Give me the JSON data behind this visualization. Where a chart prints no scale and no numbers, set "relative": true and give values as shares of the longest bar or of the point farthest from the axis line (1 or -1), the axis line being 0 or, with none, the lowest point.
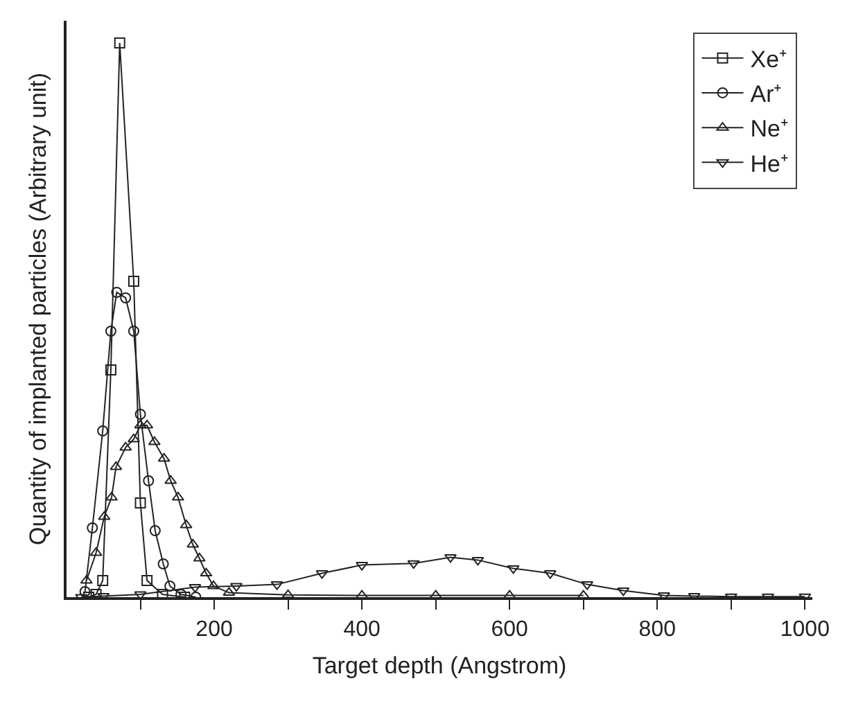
{
  "chart_data": {
    "type": "line",
    "relative": true,
    "xlabel": "Target depth (Angstrom)",
    "ylabel": "Quantity of implanted particles (Arbitrary unit)",
    "xlim": [
      0,
      1010
    ],
    "xticks": [
      {
        "value": 100,
        "label": null
      },
      200,
      {
        "value": 300,
        "label": null
      },
      400,
      {
        "value": 500,
        "label": null
      },
      600,
      {
        "value": 700,
        "label": null
      },
      800,
      {
        "value": 900,
        "label": null
      },
      1000
    ],
    "legend": "top right",
    "grid": false,
    "line_style": "solid",
    "series": [
      {
        "name": "Xe⁺",
        "color": "#222222",
        "marker": "square",
        "x": [
          30,
          40,
          49,
          60,
          72,
          91,
          100,
          109,
          130,
          160
        ],
        "values": [
          0,
          0.005,
          0.03,
          0.41,
          1.0,
          0.57,
          0.17,
          0.03,
          0.005,
          0
        ]
      },
      {
        "name": "Ar⁺",
        "color": "#222222",
        "marker": "circle",
        "x": [
          25,
          35,
          49,
          60,
          68,
          80,
          91,
          100,
          111,
          120,
          131,
          140,
          155,
          175
        ],
        "values": [
          0.01,
          0.125,
          0.3,
          0.48,
          0.55,
          0.54,
          0.48,
          0.33,
          0.21,
          0.12,
          0.06,
          0.02,
          0.005,
          0
        ]
      },
      {
        "name": "Ne⁺",
        "color": "#222222",
        "marker": "triangle",
        "x": [
          27,
          40,
          51,
          61,
          67,
          80,
          91,
          100,
          109,
          119,
          132,
          141,
          151,
          162,
          171,
          180,
          189,
          199,
          220,
          300,
          400,
          500,
          600,
          700
        ],
        "values": [
          0.03,
          0.08,
          0.145,
          0.18,
          0.235,
          0.27,
          0.285,
          0.31,
          0.31,
          0.28,
          0.25,
          0.21,
          0.18,
          0.13,
          0.095,
          0.07,
          0.043,
          0.02,
          0.008,
          0.004,
          0.003,
          0.003,
          0.003,
          0.003
        ]
      },
      {
        "name": "He⁺",
        "color": "#222222",
        "marker": "triangle-down",
        "x": [
          20,
          50,
          100,
          174,
          230,
          285,
          346,
          400,
          470,
          520,
          557,
          605,
          655,
          705,
          754,
          809,
          850,
          900,
          950,
          1000
        ],
        "values": [
          0,
          0.002,
          0.005,
          0.018,
          0.02,
          0.023,
          0.043,
          0.058,
          0.061,
          0.072,
          0.067,
          0.052,
          0.043,
          0.023,
          0.012,
          0.003,
          0.002,
          0.001,
          0.001,
          0.001
        ]
      }
    ]
  }
}
